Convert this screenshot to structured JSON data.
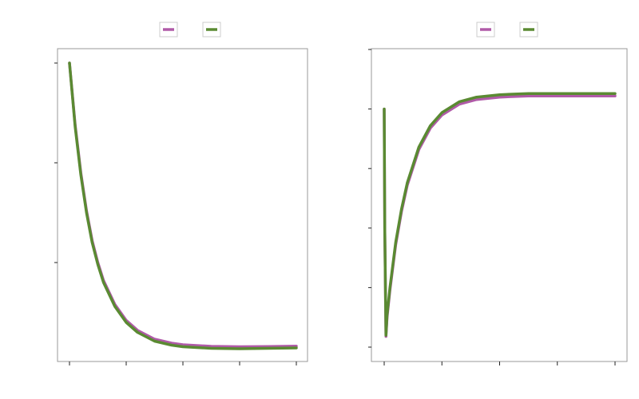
{
  "colors": {
    "series_a": "#b05aa8",
    "series_b": "#5a8a32"
  },
  "chart_data": [
    {
      "type": "line",
      "title": "",
      "xlabel": "",
      "ylabel": "",
      "xlim": [
        0,
        4.2
      ],
      "ylim": [
        0.0,
        1.6
      ],
      "xticks": [
        0,
        1,
        2,
        3,
        4
      ],
      "yticks": [
        0.5,
        1.0,
        1.5
      ],
      "grid": false,
      "legend": "top-center",
      "series": [
        {
          "color": "#b05aa8",
          "x": [
            0,
            0.1,
            0.2,
            0.3,
            0.4,
            0.5,
            0.6,
            0.8,
            1.0,
            1.2,
            1.5,
            1.8,
            2.0,
            2.5,
            3.0,
            3.5,
            4.0
          ],
          "y": [
            1.5,
            1.19,
            0.95,
            0.76,
            0.61,
            0.5,
            0.41,
            0.29,
            0.21,
            0.16,
            0.116,
            0.096,
            0.088,
            0.08,
            0.078,
            0.079,
            0.081
          ]
        },
        {
          "color": "#5a8a32",
          "x": [
            0,
            0.1,
            0.2,
            0.3,
            0.4,
            0.5,
            0.6,
            0.8,
            1.0,
            1.2,
            1.5,
            1.8,
            2.0,
            2.5,
            3.0,
            3.5,
            4.0
          ],
          "y": [
            1.5,
            1.18,
            0.94,
            0.75,
            0.6,
            0.49,
            0.4,
            0.28,
            0.2,
            0.15,
            0.106,
            0.086,
            0.078,
            0.07,
            0.068,
            0.07,
            0.072
          ]
        }
      ]
    },
    {
      "type": "line",
      "title": "",
      "xlabel": "",
      "ylabel": "",
      "xlim": [
        0,
        4.3
      ],
      "ylim": [
        -0.1,
        2.6
      ],
      "xticks": [
        0,
        1,
        2,
        3,
        4
      ],
      "yticks": [
        0.0,
        0.5,
        1.0,
        1.5,
        2.0,
        2.5
      ],
      "grid": false,
      "legend": "top-center",
      "series": [
        {
          "color": "#b05aa8",
          "x": [
            0,
            0.01,
            0.03,
            0.05,
            0.1,
            0.2,
            0.3,
            0.4,
            0.6,
            0.8,
            1.0,
            1.3,
            1.6,
            2.0,
            2.5,
            3.0,
            3.5,
            4.0
          ],
          "y": [
            2.0,
            1.0,
            0.09,
            0.25,
            0.48,
            0.86,
            1.14,
            1.36,
            1.66,
            1.84,
            1.95,
            2.04,
            2.08,
            2.1,
            2.11,
            2.11,
            2.11,
            2.11
          ]
        },
        {
          "color": "#5a8a32",
          "x": [
            0,
            0.01,
            0.03,
            0.05,
            0.1,
            0.2,
            0.3,
            0.4,
            0.6,
            0.8,
            1.0,
            1.3,
            1.6,
            2.0,
            2.5,
            3.0,
            3.5,
            4.0
          ],
          "y": [
            2.0,
            1.0,
            0.1,
            0.27,
            0.5,
            0.88,
            1.16,
            1.38,
            1.68,
            1.86,
            1.97,
            2.06,
            2.1,
            2.12,
            2.13,
            2.13,
            2.13,
            2.13
          ]
        }
      ]
    }
  ]
}
